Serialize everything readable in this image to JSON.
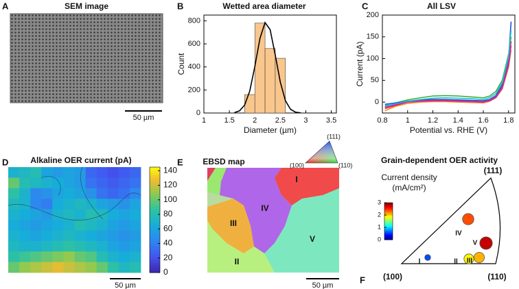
{
  "chart_data": [
    {
      "type": "image",
      "label": "A",
      "title": "SEM image",
      "scalebar": "50 µm"
    },
    {
      "type": "histogram",
      "label": "B",
      "title": "Wetted area diameter",
      "x_label": "Diameter (µm)",
      "y_label": "Count",
      "bins": [
        1.8,
        2.0,
        2.2,
        2.4,
        2.6
      ],
      "values": [
        160,
        780,
        560,
        475
      ],
      "color": "#f9c68c",
      "fit": {
        "x": [
          1.6,
          1.7,
          1.8,
          1.9,
          2.0,
          2.1,
          2.2,
          2.3,
          2.4,
          2.5,
          2.6,
          2.7,
          2.8,
          2.9
        ],
        "values": [
          4,
          19,
          69,
          191,
          404,
          647,
          785,
          723,
          504,
          267,
          107,
          32,
          7,
          1
        ],
        "color": "#000000"
      },
      "xlim": [
        1,
        3.6
      ],
      "xticks": [
        1,
        1.5,
        2,
        2.5,
        3,
        3.5
      ],
      "ylim": [
        0,
        850
      ],
      "yticks": [
        0,
        200,
        400,
        600,
        800
      ]
    },
    {
      "type": "line",
      "label": "C",
      "title": "All LSV",
      "x_label": "Potential vs. RHE (V)",
      "y_label": "Current (pA)",
      "x": [
        0.82,
        0.9,
        1.0,
        1.1,
        1.2,
        1.3,
        1.4,
        1.5,
        1.6,
        1.65,
        1.7,
        1.75,
        1.8,
        1.82
      ],
      "series": [
        {
          "color": "#3cb043",
          "values": [
            -10,
            -2,
            5,
            10,
            14,
            15,
            14,
            12,
            10,
            14,
            25,
            50,
            110,
            150
          ]
        },
        {
          "color": "#1f4fd8",
          "values": [
            -5,
            -2,
            2,
            5,
            6,
            6,
            5,
            4,
            3,
            6,
            15,
            40,
            100,
            185
          ]
        },
        {
          "color": "#e03030",
          "values": [
            -15,
            -8,
            0,
            3,
            4,
            4,
            3,
            2,
            1,
            4,
            12,
            35,
            90,
            140
          ]
        },
        {
          "color": "#f08c1a",
          "values": [
            -20,
            -10,
            -3,
            0,
            1,
            1,
            0,
            -1,
            -2,
            2,
            10,
            30,
            80,
            120
          ]
        },
        {
          "color": "#19c4d4",
          "values": [
            -8,
            -4,
            2,
            6,
            9,
            10,
            9,
            8,
            6,
            10,
            20,
            45,
            105,
            165
          ]
        },
        {
          "color": "#c02cc0",
          "values": [
            -12,
            -6,
            0,
            2,
            3,
            3,
            2,
            1,
            0,
            3,
            11,
            32,
            85,
            130
          ]
        }
      ],
      "xlim": [
        0.8,
        1.85
      ],
      "xticks": [
        0.8,
        1,
        1.2,
        1.4,
        1.6,
        1.8
      ],
      "ylim": [
        -25,
        200
      ],
      "yticks": [
        0,
        50,
        100,
        150,
        200
      ]
    },
    {
      "type": "heatmap",
      "label": "D",
      "title": "Alkaline OER current (pA)",
      "scalebar": "50 µm",
      "colormap": "parula",
      "clim": [
        0,
        145
      ],
      "cticks": [
        0,
        20,
        40,
        60,
        80,
        100,
        120,
        140
      ],
      "values": [
        [
          70,
          75,
          80,
          60,
          55,
          60,
          55,
          30,
          25,
          20,
          25,
          30
        ],
        [
          100,
          80,
          75,
          70,
          65,
          60,
          55,
          35,
          30,
          25,
          30,
          35
        ],
        [
          85,
          70,
          45,
          50,
          60,
          65,
          60,
          50,
          35,
          30,
          35,
          45
        ],
        [
          75,
          70,
          45,
          40,
          65,
          70,
          75,
          70,
          60,
          55,
          50,
          60
        ],
        [
          70,
          65,
          60,
          55,
          70,
          75,
          70,
          80,
          75,
          65,
          60,
          65
        ],
        [
          65,
          60,
          55,
          60,
          65,
          70,
          80,
          75,
          70,
          60,
          55,
          60
        ],
        [
          70,
          65,
          60,
          65,
          70,
          75,
          70,
          65,
          60,
          55,
          50,
          55
        ],
        [
          75,
          70,
          70,
          75,
          80,
          85,
          80,
          75,
          70,
          60,
          55,
          60
        ],
        [
          85,
          90,
          95,
          100,
          105,
          110,
          100,
          95,
          80,
          70,
          65,
          70
        ],
        [
          100,
          110,
          115,
          120,
          125,
          120,
          115,
          110,
          100,
          85,
          75,
          80
        ]
      ]
    },
    {
      "type": "image",
      "label": "E",
      "title": "EBSD map",
      "scalebar": "50 µm",
      "grain_labels": [
        "I",
        "II",
        "III",
        "IV",
        "V"
      ],
      "ipf_labels": [
        "(111)",
        "(100)",
        "(110)"
      ]
    },
    {
      "type": "scatter",
      "label": "F",
      "title": "Grain-dependent OER activity",
      "colorbar_label": [
        "Current density",
        "(mA/cm²)"
      ],
      "colormap": "jet",
      "clim": [
        0,
        3
      ],
      "cticks": [
        0,
        1,
        2,
        3
      ],
      "labels": [
        "I",
        "II",
        "III",
        "IV",
        "V"
      ],
      "values": [
        0.6,
        1.9,
        2.1,
        2.4,
        2.8
      ],
      "corner_labels": [
        "(111)",
        "(100)",
        "(110)"
      ]
    }
  ]
}
